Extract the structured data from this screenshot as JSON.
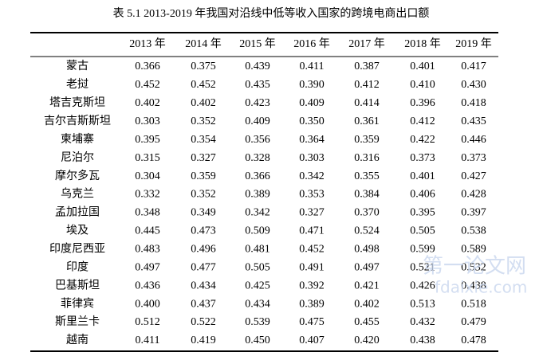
{
  "header": {
    "title": "表 5.1 2013-2019 年我国对沿线中低等收入国家的跨境电商出口额"
  },
  "table": {
    "columns": [
      "2013 年",
      "2014 年",
      "2015 年",
      "2016 年",
      "2017 年",
      "2018 年",
      "2019 年"
    ],
    "rows": [
      [
        "蒙古",
        "0.366",
        "0.375",
        "0.439",
        "0.411",
        "0.387",
        "0.401",
        "0.417"
      ],
      [
        "老挝",
        "0.452",
        "0.452",
        "0.435",
        "0.390",
        "0.412",
        "0.410",
        "0.430"
      ],
      [
        "塔吉克斯坦",
        "0.402",
        "0.402",
        "0.423",
        "0.409",
        "0.414",
        "0.396",
        "0.418"
      ],
      [
        "吉尔吉斯斯坦",
        "0.303",
        "0.352",
        "0.409",
        "0.350",
        "0.361",
        "0.412",
        "0.435"
      ],
      [
        "柬埔寨",
        "0.395",
        "0.354",
        "0.356",
        "0.364",
        "0.359",
        "0.422",
        "0.446"
      ],
      [
        "尼泊尔",
        "0.315",
        "0.327",
        "0.328",
        "0.303",
        "0.316",
        "0.373",
        "0.373"
      ],
      [
        "摩尔多瓦",
        "0.304",
        "0.359",
        "0.366",
        "0.342",
        "0.355",
        "0.401",
        "0.427"
      ],
      [
        "乌克兰",
        "0.332",
        "0.352",
        "0.389",
        "0.353",
        "0.384",
        "0.406",
        "0.428"
      ],
      [
        "孟加拉国",
        "0.348",
        "0.349",
        "0.342",
        "0.327",
        "0.370",
        "0.395",
        "0.397"
      ],
      [
        "埃及",
        "0.445",
        "0.473",
        "0.509",
        "0.471",
        "0.524",
        "0.505",
        "0.538"
      ],
      [
        "印度尼西亚",
        "0.483",
        "0.496",
        "0.481",
        "0.452",
        "0.498",
        "0.599",
        "0.589"
      ],
      [
        "印度",
        "0.497",
        "0.477",
        "0.505",
        "0.491",
        "0.497",
        "0.521",
        "0.532"
      ],
      [
        "巴基斯坦",
        "0.436",
        "0.434",
        "0.425",
        "0.392",
        "0.421",
        "0.426",
        "0.438"
      ],
      [
        "菲律宾",
        "0.400",
        "0.437",
        "0.434",
        "0.389",
        "0.402",
        "0.513",
        "0.518"
      ],
      [
        "斯里兰卡",
        "0.512",
        "0.522",
        "0.539",
        "0.475",
        "0.455",
        "0.432",
        "0.479"
      ],
      [
        "越南",
        "0.411",
        "0.419",
        "0.450",
        "0.407",
        "0.420",
        "0.438",
        "0.478"
      ]
    ]
  },
  "watermark": {
    "name": "第一论文网",
    "url": "fdaixie.com"
  }
}
